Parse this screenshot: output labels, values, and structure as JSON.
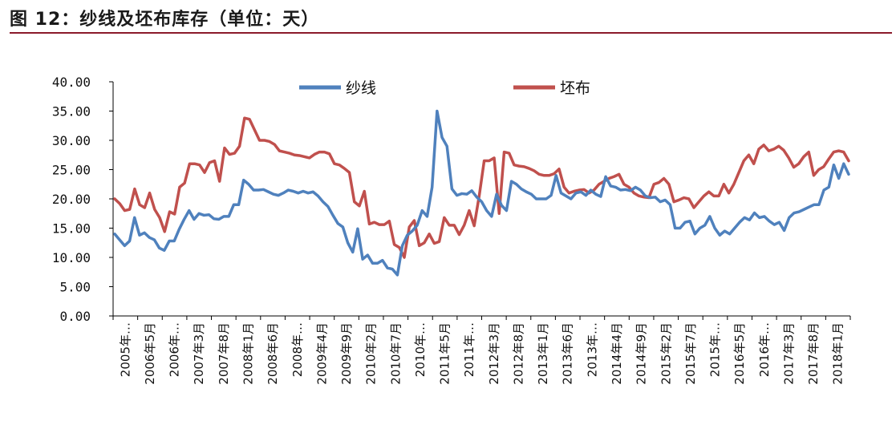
{
  "header": {
    "title": "图 12：纱线及坯布库存（单位：天）"
  },
  "colors": {
    "rule": "#8b1a2b",
    "yarn": "#4f81bd",
    "cloth": "#c0504d"
  },
  "chart_data": {
    "type": "line",
    "title": "纱线及坯布库存（单位：天）",
    "xlabel": "",
    "ylabel": "",
    "ylim": [
      0,
      40
    ],
    "y_ticks": [
      "0.00",
      "5.00",
      "10.00",
      "15.00",
      "20.00",
      "25.00",
      "30.00",
      "35.00",
      "40.00"
    ],
    "x_tick_labels": [
      "2005年…",
      "2006年5月",
      "2006年…",
      "2007年3月",
      "2007年8月",
      "2008年1月",
      "2008年6月",
      "2008年…",
      "2009年4月",
      "2009年9月",
      "2010年2月",
      "2010年7月",
      "2010年…",
      "2011年5月",
      "2011年…",
      "2012年3月",
      "2012年8月",
      "2013年1月",
      "2013年6月",
      "2013年…",
      "2014年4月",
      "2014年9月",
      "2015年2月",
      "2015年7月",
      "2015年…",
      "2016年5月",
      "2016年…",
      "2017年3月",
      "2017年8月",
      "2018年1月"
    ],
    "legend": [
      "纱线",
      "坯布"
    ],
    "series": [
      {
        "name": "纱线",
        "values": [
          14.0,
          13.0,
          12.0,
          12.8,
          16.8,
          13.8,
          14.2,
          13.4,
          13.0,
          11.6,
          11.2,
          12.8,
          12.8,
          14.8,
          16.5,
          18.0,
          16.5,
          17.5,
          17.2,
          17.3,
          16.6,
          16.5,
          17.0,
          17.0,
          19.0,
          19.0,
          23.2,
          22.5,
          21.5,
          21.5,
          21.6,
          21.2,
          20.8,
          20.6,
          21.0,
          21.5,
          21.3,
          21.0,
          21.3,
          21.0,
          21.2,
          20.5,
          19.5,
          18.7,
          17.2,
          15.8,
          15.2,
          12.5,
          10.9,
          14.9,
          9.7,
          10.4,
          9.0,
          9.0,
          9.5,
          8.2,
          8.0,
          7.0,
          12.0,
          13.8,
          14.5,
          15.5,
          18.0,
          17.0,
          22.0,
          35.0,
          30.5,
          29.0,
          21.7,
          20.6,
          20.9,
          20.8,
          21.4,
          20.3,
          19.5,
          18.0,
          17.0,
          20.8,
          18.9,
          18.0,
          23.0,
          22.5,
          21.7,
          21.2,
          20.8,
          20.0,
          20.0,
          20.0,
          20.6,
          24.0,
          21.0,
          20.5,
          20.0,
          21.0,
          21.2,
          20.6,
          21.5,
          20.8,
          20.4,
          23.8,
          22.2,
          22.0,
          21.5,
          21.6,
          21.4,
          22.0,
          21.5,
          20.5,
          20.2,
          20.3,
          19.5,
          19.8,
          19.0,
          15.0,
          15.0,
          16.0,
          16.2,
          14.0,
          15.0,
          15.5,
          17.0,
          15.0,
          13.8,
          14.5,
          14.0,
          15.0,
          16.0,
          16.8,
          16.4,
          17.6,
          16.8,
          17.0,
          16.2,
          15.6,
          16.0,
          14.6,
          16.8,
          17.6,
          17.8,
          18.2,
          18.6,
          19.0,
          19.0,
          21.5,
          22.0,
          25.8,
          23.5,
          26.0,
          24.2
        ]
      },
      {
        "name": "坯布",
        "values": [
          20.0,
          19.2,
          18.0,
          18.2,
          21.7,
          19.0,
          18.5,
          21.0,
          18.2,
          16.8,
          14.4,
          17.8,
          17.4,
          22.0,
          22.7,
          26.0,
          26.0,
          25.8,
          24.5,
          26.2,
          26.5,
          23.0,
          28.7,
          27.6,
          27.8,
          29.0,
          33.8,
          33.6,
          31.8,
          30.0,
          30.0,
          29.8,
          29.3,
          28.2,
          28.0,
          27.8,
          27.5,
          27.4,
          27.2,
          27.0,
          27.6,
          28.0,
          28.0,
          27.7,
          26.0,
          25.8,
          25.2,
          24.5,
          19.5,
          18.8,
          21.3,
          15.7,
          16.0,
          15.6,
          15.6,
          16.2,
          12.2,
          11.7,
          10.0,
          15.2,
          16.3,
          12.0,
          12.5,
          14.0,
          12.4,
          12.7,
          16.8,
          15.5,
          15.5,
          13.9,
          15.5,
          18.0,
          15.4,
          20.5,
          26.5,
          26.5,
          27.0,
          17.5,
          28.0,
          27.8,
          25.8,
          25.6,
          25.5,
          25.2,
          24.8,
          24.2,
          24.0,
          24.0,
          24.3,
          25.1,
          22.0,
          21.0,
          21.3,
          21.5,
          21.6,
          21.0,
          21.5,
          22.5,
          23.0,
          23.5,
          23.8,
          24.2,
          22.5,
          22.0,
          21.0,
          20.5,
          20.3,
          20.2,
          22.5,
          22.8,
          23.5,
          22.5,
          19.5,
          19.8,
          20.2,
          20.0,
          18.5,
          19.5,
          20.5,
          21.2,
          20.5,
          20.5,
          22.5,
          21.0,
          22.5,
          24.5,
          26.5,
          27.5,
          26.0,
          28.5,
          29.2,
          28.2,
          28.5,
          29.0,
          28.3,
          27.0,
          25.4,
          26.0,
          27.2,
          28.0,
          24.0,
          25.0,
          25.5,
          26.8,
          28.0,
          28.2,
          28.0,
          26.5
        ]
      }
    ]
  }
}
